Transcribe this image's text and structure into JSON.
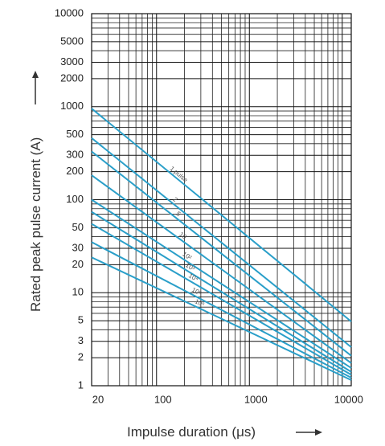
{
  "chart_data": {
    "type": "line",
    "y_label": "Rated peak pulse current (A)",
    "x_label": "Impulse duration (μs)",
    "log_x": true,
    "log_y": true,
    "grid": true,
    "x": [
      20,
      12500
    ],
    "xlim": [
      20,
      12500
    ],
    "ylim": [
      1,
      10000
    ],
    "xticks": [
      20,
      100,
      1000,
      10000
    ],
    "yticks": [
      1,
      2,
      3,
      5,
      10,
      20,
      30,
      50,
      100,
      200,
      300,
      500,
      1000,
      2000,
      3000,
      5000,
      10000
    ],
    "x_minor_ticks": [
      30,
      40,
      50,
      60,
      70,
      80,
      90,
      200,
      300,
      400,
      500,
      600,
      700,
      800,
      900,
      2000,
      3000,
      4000,
      5000,
      6000,
      7000,
      8000,
      9000
    ],
    "y_minor_ticks": [
      4,
      6,
      7,
      8,
      9,
      40,
      60,
      70,
      80,
      90,
      400,
      600,
      700,
      800,
      900,
      4000,
      6000,
      7000,
      8000,
      9000
    ],
    "series": [
      {
        "name": "1 pulse",
        "color": "#2a9fc9",
        "values": [
          955,
          4.9
        ]
      },
      {
        "name": "2",
        "color": "#2a9fc9",
        "values": [
          460,
          2.6
        ]
      },
      {
        "name": "5",
        "color": "#2a9fc9",
        "values": [
          330,
          2.1
        ]
      },
      {
        "name": "10",
        "color": "#2a9fc9",
        "values": [
          183,
          1.75
        ]
      },
      {
        "name": "10²",
        "color": "#2a9fc9",
        "values": [
          100,
          1.55
        ]
      },
      {
        "name": "10³",
        "color": "#2a9fc9",
        "values": [
          74,
          1.41
        ]
      },
      {
        "name": "10⁴",
        "color": "#2a9fc9",
        "values": [
          55,
          1.31
        ]
      },
      {
        "name": "10⁵",
        "color": "#2a9fc9",
        "values": [
          35,
          1.22
        ]
      },
      {
        "name": "10⁶",
        "color": "#2a9fc9",
        "values": [
          24,
          1.15
        ]
      }
    ]
  }
}
